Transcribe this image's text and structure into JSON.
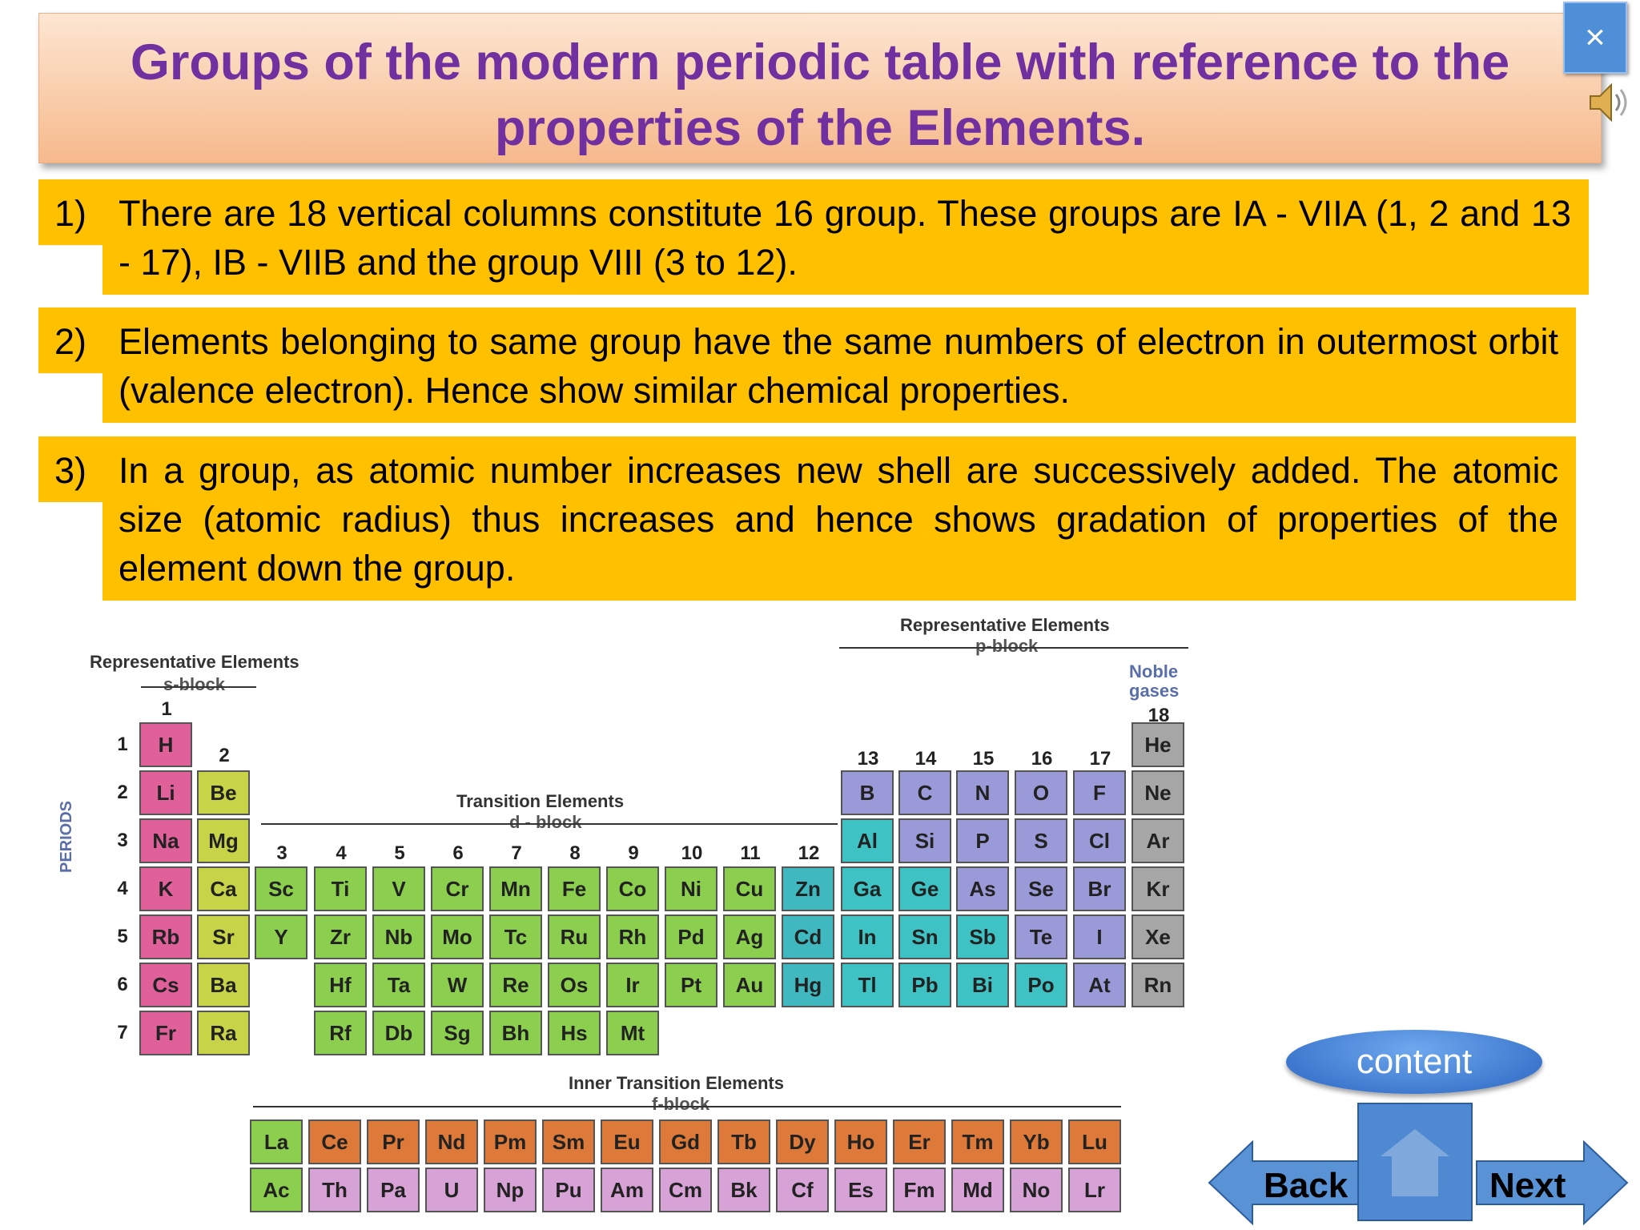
{
  "slide": {
    "title_line1": "Groups of the modern periodic table with reference to the",
    "title_line2": "properties of the Elements.",
    "close_label": "×",
    "points": [
      {
        "num": "1)",
        "text": "There are 18 vertical columns constitute 16 group. These groups are IA - VIIA (1, 2 and 13 - 17), IB - VIIB and the group VIII (3 to 12)."
      },
      {
        "num": "2)",
        "text": "Elements belonging to same group have the same numbers of electron in outermost orbit (valence electron). Hence show similar chemical properties."
      },
      {
        "num": "3)",
        "text": "In a group, as atomic number increases new shell are successively added. The atomic size (atomic radius) thus increases and hence shows gradation of properties of the element down the group."
      }
    ]
  },
  "table": {
    "labels": {
      "rep_s": "Representative Elements",
      "s_block": "s-block",
      "rep_p": "Representative Elements",
      "p_block": "p-block",
      "noble1": "Noble",
      "noble2": "gases",
      "transition": "Transition Elements",
      "d_block": "d - block",
      "inner": "Inner Transition Elements",
      "f_block": "f-block",
      "periods": "PERIODS"
    },
    "colors": {
      "s1": "#e0609a",
      "s2": "#c8d448",
      "d": "#8ccf4e",
      "d12": "#3fb8bf",
      "p_purple": "#9a9ad8",
      "p_teal": "#3fc2c4",
      "noble": "#a6a6a6",
      "f_green": "#8ccf4e",
      "f_orange": "#dd7a3a",
      "f_pink": "#d7a2d6"
    },
    "group_numbers": [
      "1",
      "2",
      "3",
      "4",
      "5",
      "6",
      "7",
      "8",
      "9",
      "10",
      "11",
      "12",
      "13",
      "14",
      "15",
      "16",
      "17",
      "18"
    ],
    "period_numbers": [
      "1",
      "2",
      "3",
      "4",
      "5",
      "6",
      "7"
    ],
    "elements": [
      {
        "s": "H",
        "g": 1,
        "p": 1,
        "c": "s1"
      },
      {
        "s": "He",
        "g": 18,
        "p": 1,
        "c": "noble"
      },
      {
        "s": "Li",
        "g": 1,
        "p": 2,
        "c": "s1"
      },
      {
        "s": "Be",
        "g": 2,
        "p": 2,
        "c": "s2"
      },
      {
        "s": "B",
        "g": 13,
        "p": 2,
        "c": "p_purple"
      },
      {
        "s": "C",
        "g": 14,
        "p": 2,
        "c": "p_purple"
      },
      {
        "s": "N",
        "g": 15,
        "p": 2,
        "c": "p_purple"
      },
      {
        "s": "O",
        "g": 16,
        "p": 2,
        "c": "p_purple"
      },
      {
        "s": "F",
        "g": 17,
        "p": 2,
        "c": "p_purple"
      },
      {
        "s": "Ne",
        "g": 18,
        "p": 2,
        "c": "noble"
      },
      {
        "s": "Na",
        "g": 1,
        "p": 3,
        "c": "s1"
      },
      {
        "s": "Mg",
        "g": 2,
        "p": 3,
        "c": "s2"
      },
      {
        "s": "Al",
        "g": 13,
        "p": 3,
        "c": "p_teal"
      },
      {
        "s": "Si",
        "g": 14,
        "p": 3,
        "c": "p_purple"
      },
      {
        "s": "P",
        "g": 15,
        "p": 3,
        "c": "p_purple"
      },
      {
        "s": "S",
        "g": 16,
        "p": 3,
        "c": "p_purple"
      },
      {
        "s": "Cl",
        "g": 17,
        "p": 3,
        "c": "p_purple"
      },
      {
        "s": "Ar",
        "g": 18,
        "p": 3,
        "c": "noble"
      },
      {
        "s": "K",
        "g": 1,
        "p": 4,
        "c": "s1"
      },
      {
        "s": "Ca",
        "g": 2,
        "p": 4,
        "c": "s2"
      },
      {
        "s": "Sc",
        "g": 3,
        "p": 4,
        "c": "d"
      },
      {
        "s": "Ti",
        "g": 4,
        "p": 4,
        "c": "d"
      },
      {
        "s": "V",
        "g": 5,
        "p": 4,
        "c": "d"
      },
      {
        "s": "Cr",
        "g": 6,
        "p": 4,
        "c": "d"
      },
      {
        "s": "Mn",
        "g": 7,
        "p": 4,
        "c": "d"
      },
      {
        "s": "Fe",
        "g": 8,
        "p": 4,
        "c": "d"
      },
      {
        "s": "Co",
        "g": 9,
        "p": 4,
        "c": "d"
      },
      {
        "s": "Ni",
        "g": 10,
        "p": 4,
        "c": "d"
      },
      {
        "s": "Cu",
        "g": 11,
        "p": 4,
        "c": "d"
      },
      {
        "s": "Zn",
        "g": 12,
        "p": 4,
        "c": "d12"
      },
      {
        "s": "Ga",
        "g": 13,
        "p": 4,
        "c": "p_teal"
      },
      {
        "s": "Ge",
        "g": 14,
        "p": 4,
        "c": "p_teal"
      },
      {
        "s": "As",
        "g": 15,
        "p": 4,
        "c": "p_purple"
      },
      {
        "s": "Se",
        "g": 16,
        "p": 4,
        "c": "p_purple"
      },
      {
        "s": "Br",
        "g": 17,
        "p": 4,
        "c": "p_purple"
      },
      {
        "s": "Kr",
        "g": 18,
        "p": 4,
        "c": "noble"
      },
      {
        "s": "Rb",
        "g": 1,
        "p": 5,
        "c": "s1"
      },
      {
        "s": "Sr",
        "g": 2,
        "p": 5,
        "c": "s2"
      },
      {
        "s": "Y",
        "g": 3,
        "p": 5,
        "c": "d"
      },
      {
        "s": "Zr",
        "g": 4,
        "p": 5,
        "c": "d"
      },
      {
        "s": "Nb",
        "g": 5,
        "p": 5,
        "c": "d"
      },
      {
        "s": "Mo",
        "g": 6,
        "p": 5,
        "c": "d"
      },
      {
        "s": "Tc",
        "g": 7,
        "p": 5,
        "c": "d"
      },
      {
        "s": "Ru",
        "g": 8,
        "p": 5,
        "c": "d"
      },
      {
        "s": "Rh",
        "g": 9,
        "p": 5,
        "c": "d"
      },
      {
        "s": "Pd",
        "g": 10,
        "p": 5,
        "c": "d"
      },
      {
        "s": "Ag",
        "g": 11,
        "p": 5,
        "c": "d"
      },
      {
        "s": "Cd",
        "g": 12,
        "p": 5,
        "c": "d12"
      },
      {
        "s": "In",
        "g": 13,
        "p": 5,
        "c": "p_teal"
      },
      {
        "s": "Sn",
        "g": 14,
        "p": 5,
        "c": "p_teal"
      },
      {
        "s": "Sb",
        "g": 15,
        "p": 5,
        "c": "p_teal"
      },
      {
        "s": "Te",
        "g": 16,
        "p": 5,
        "c": "p_purple"
      },
      {
        "s": "I",
        "g": 17,
        "p": 5,
        "c": "p_purple"
      },
      {
        "s": "Xe",
        "g": 18,
        "p": 5,
        "c": "noble"
      },
      {
        "s": "Cs",
        "g": 1,
        "p": 6,
        "c": "s1"
      },
      {
        "s": "Ba",
        "g": 2,
        "p": 6,
        "c": "s2"
      },
      {
        "s": "Hf",
        "g": 4,
        "p": 6,
        "c": "d"
      },
      {
        "s": "Ta",
        "g": 5,
        "p": 6,
        "c": "d"
      },
      {
        "s": "W",
        "g": 6,
        "p": 6,
        "c": "d"
      },
      {
        "s": "Re",
        "g": 7,
        "p": 6,
        "c": "d"
      },
      {
        "s": "Os",
        "g": 8,
        "p": 6,
        "c": "d"
      },
      {
        "s": "Ir",
        "g": 9,
        "p": 6,
        "c": "d"
      },
      {
        "s": "Pt",
        "g": 10,
        "p": 6,
        "c": "d"
      },
      {
        "s": "Au",
        "g": 11,
        "p": 6,
        "c": "d"
      },
      {
        "s": "Hg",
        "g": 12,
        "p": 6,
        "c": "d12"
      },
      {
        "s": "Tl",
        "g": 13,
        "p": 6,
        "c": "p_teal"
      },
      {
        "s": "Pb",
        "g": 14,
        "p": 6,
        "c": "p_teal"
      },
      {
        "s": "Bi",
        "g": 15,
        "p": 6,
        "c": "p_teal"
      },
      {
        "s": "Po",
        "g": 16,
        "p": 6,
        "c": "p_teal"
      },
      {
        "s": "At",
        "g": 17,
        "p": 6,
        "c": "p_purple"
      },
      {
        "s": "Rn",
        "g": 18,
        "p": 6,
        "c": "noble"
      },
      {
        "s": "Fr",
        "g": 1,
        "p": 7,
        "c": "s1"
      },
      {
        "s": "Ra",
        "g": 2,
        "p": 7,
        "c": "s2"
      },
      {
        "s": "Rf",
        "g": 4,
        "p": 7,
        "c": "d"
      },
      {
        "s": "Db",
        "g": 5,
        "p": 7,
        "c": "d"
      },
      {
        "s": "Sg",
        "g": 6,
        "p": 7,
        "c": "d"
      },
      {
        "s": "Bh",
        "g": 7,
        "p": 7,
        "c": "d"
      },
      {
        "s": "Hs",
        "g": 8,
        "p": 7,
        "c": "d"
      },
      {
        "s": "Mt",
        "g": 9,
        "p": 7,
        "c": "d"
      }
    ],
    "lanthanides": [
      "La",
      "Ce",
      "Pr",
      "Nd",
      "Pm",
      "Sm",
      "Eu",
      "Gd",
      "Tb",
      "Dy",
      "Ho",
      "Er",
      "Tm",
      "Yb",
      "Lu"
    ],
    "actinides": [
      "Ac",
      "Th",
      "Pa",
      "U",
      "Np",
      "Pu",
      "Am",
      "Cm",
      "Bk",
      "Cf",
      "Es",
      "Fm",
      "Md",
      "No",
      "Lr"
    ]
  },
  "nav": {
    "content_label": "content",
    "back_label": "Back",
    "next_label": "Next",
    "home_icon": "home-icon"
  }
}
